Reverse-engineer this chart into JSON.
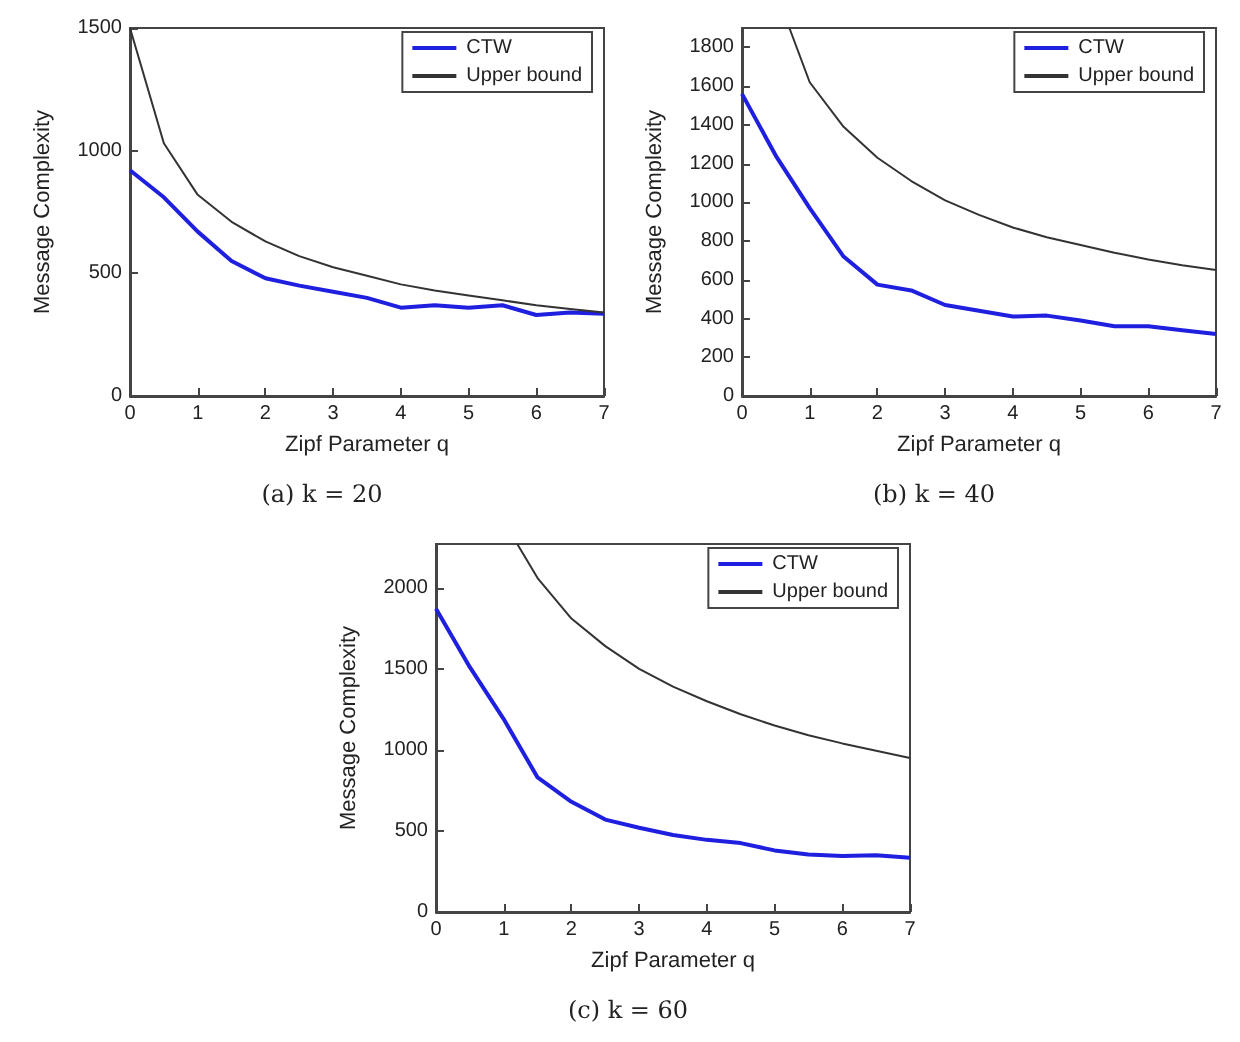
{
  "chart_data": [
    {
      "type": "line",
      "title": "(a) k = 20",
      "xlabel": "Zipf Parameter q",
      "ylabel": "Message Complexity",
      "x": [
        0,
        0.5,
        1,
        1.5,
        2,
        2.5,
        3,
        3.5,
        4,
        4.5,
        5,
        5.5,
        6,
        6.5,
        7
      ],
      "xlim": [
        0,
        7
      ],
      "xticks": [
        0,
        1,
        2,
        3,
        4,
        5,
        6,
        7
      ],
      "ylim": [
        0,
        1500
      ],
      "yticks": [
        0,
        500,
        1000,
        1500
      ],
      "legend": "top right",
      "grid": false,
      "marker": "none",
      "series": [
        {
          "name": "CTW",
          "color": "#1f1fe0",
          "values": [
            920,
            810,
            670,
            550,
            480,
            450,
            425,
            400,
            360,
            370,
            360,
            370,
            330,
            340,
            335
          ]
        },
        {
          "name": "Upper bound",
          "color": "#333333",
          "values": [
            1500,
            1030,
            820,
            710,
            630,
            570,
            525,
            490,
            455,
            430,
            410,
            390,
            370,
            355,
            340
          ]
        }
      ]
    },
    {
      "type": "line",
      "title": "(b) k = 40",
      "xlabel": "Zipf Parameter q",
      "ylabel": "Message Complexity",
      "x": [
        0,
        0.5,
        1,
        1.5,
        2,
        2.5,
        3,
        3.5,
        4,
        4.5,
        5,
        5.5,
        6,
        6.5,
        7
      ],
      "xlim": [
        0,
        7
      ],
      "xticks": [
        0,
        1,
        2,
        3,
        4,
        5,
        6,
        7
      ],
      "ylim": [
        0,
        1900
      ],
      "yticks": [
        0,
        200,
        400,
        600,
        800,
        1000,
        1200,
        1400,
        1600,
        1800
      ],
      "legend": "top right",
      "grid": false,
      "marker": "none",
      "series": [
        {
          "name": "CTW",
          "color": "#1f1fe0",
          "values": [
            1560,
            1240,
            970,
            720,
            575,
            545,
            470,
            440,
            410,
            415,
            390,
            360,
            360,
            340,
            320
          ]
        },
        {
          "name": "Upper bound",
          "color": "#333333",
          "x": [
            0.7,
            1,
            1.5,
            2,
            2.5,
            3,
            3.5,
            4,
            4.5,
            5,
            5.5,
            6,
            6.5,
            7
          ],
          "values": [
            1900,
            1620,
            1390,
            1230,
            1110,
            1010,
            935,
            870,
            820,
            780,
            740,
            705,
            675,
            650
          ]
        }
      ]
    },
    {
      "type": "line",
      "title": "(c) k = 60",
      "xlabel": "Zipf Parameter q",
      "ylabel": "Message Complexity",
      "x": [
        0,
        0.5,
        1,
        1.5,
        2,
        2.5,
        3,
        3.5,
        4,
        4.5,
        5,
        5.5,
        6,
        6.5,
        7
      ],
      "xlim": [
        0,
        7
      ],
      "xticks": [
        0,
        1,
        2,
        3,
        4,
        5,
        6,
        7
      ],
      "ylim": [
        0,
        2270
      ],
      "yticks": [
        0,
        500,
        1000,
        1500,
        2000
      ],
      "legend": "top right",
      "grid": false,
      "marker": "none",
      "series": [
        {
          "name": "CTW",
          "color": "#1f1fe0",
          "values": [
            1870,
            1510,
            1190,
            830,
            680,
            570,
            520,
            475,
            445,
            425,
            380,
            355,
            345,
            350,
            335
          ]
        },
        {
          "name": "Upper bound",
          "color": "#333333",
          "x": [
            1.2,
            1.5,
            2,
            2.5,
            3,
            3.5,
            4,
            4.5,
            5,
            5.5,
            6,
            6.5,
            7
          ],
          "values": [
            2270,
            2060,
            1810,
            1640,
            1500,
            1390,
            1300,
            1220,
            1150,
            1090,
            1040,
            995,
            950
          ]
        }
      ]
    }
  ]
}
